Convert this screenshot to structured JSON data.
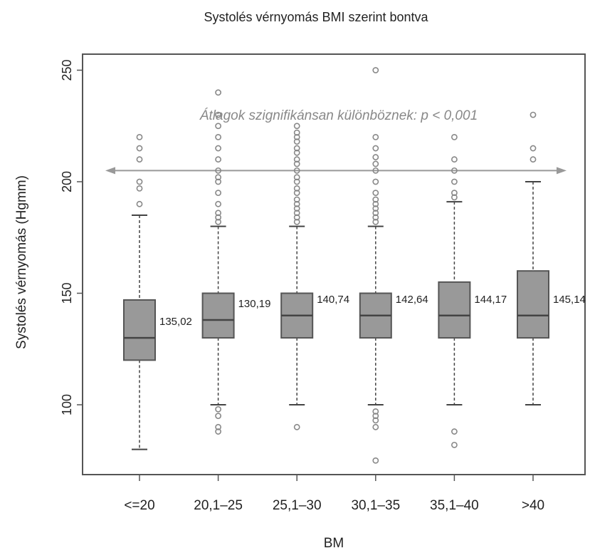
{
  "chart_data": {
    "type": "box",
    "title": "Systolés vérnyomás BMI szerint bontva",
    "xlabel": "BM",
    "ylabel": "Systolés vérnyomás (Hgmm)",
    "ylim": [
      70,
      255
    ],
    "yticks": [
      100,
      150,
      200,
      250
    ],
    "grid": false,
    "annotation": {
      "text": "Átlagok szignifikánsan különböznek: p < 0,001",
      "arrow_y": 205
    },
    "colors": {
      "box": "#999999",
      "box_stroke": "#555555",
      "outlier": "#888888",
      "annotation": "#888888",
      "axis": "#555555"
    },
    "groups": [
      {
        "category": "<=20",
        "whisker_low": 80,
        "q1": 120,
        "median": 130,
        "q3": 147,
        "whisker_high": 185,
        "mean_label": "135,02",
        "outliers": [
          190,
          197,
          200,
          210,
          215,
          220
        ]
      },
      {
        "category": "20,1–25",
        "whisker_low": 100,
        "q1": 130,
        "median": 138,
        "q3": 150,
        "whisker_high": 180,
        "mean_label": "130,19",
        "outliers": [
          88,
          90,
          95,
          98,
          182,
          184,
          186,
          190,
          195,
          200,
          202,
          205,
          210,
          215,
          220,
          225,
          230,
          240
        ]
      },
      {
        "category": "25,1–30",
        "whisker_low": 100,
        "q1": 130,
        "median": 140,
        "q3": 150,
        "whisker_high": 180,
        "mean_label": "140,74",
        "outliers": [
          90,
          182,
          184,
          186,
          188,
          190,
          192,
          195,
          197,
          200,
          202,
          205,
          208,
          210,
          213,
          215,
          218,
          220,
          222,
          225
        ]
      },
      {
        "category": "30,1–35",
        "whisker_low": 100,
        "q1": 130,
        "median": 140,
        "q3": 150,
        "whisker_high": 180,
        "mean_label": "142,64",
        "outliers": [
          75,
          90,
          93,
          95,
          97,
          182,
          184,
          186,
          188,
          190,
          192,
          195,
          200,
          205,
          208,
          211,
          215,
          220,
          250
        ]
      },
      {
        "category": "35,1–40",
        "whisker_low": 100,
        "q1": 130,
        "median": 140,
        "q3": 155,
        "whisker_high": 191,
        "mean_label": "144,17",
        "outliers": [
          82,
          88,
          193,
          195,
          200,
          205,
          210,
          220
        ]
      },
      {
        "category": ">40",
        "whisker_low": 100,
        "q1": 130,
        "median": 140,
        "q3": 160,
        "whisker_high": 200,
        "mean_label": "145,14",
        "outliers": [
          210,
          215,
          230
        ]
      }
    ]
  }
}
